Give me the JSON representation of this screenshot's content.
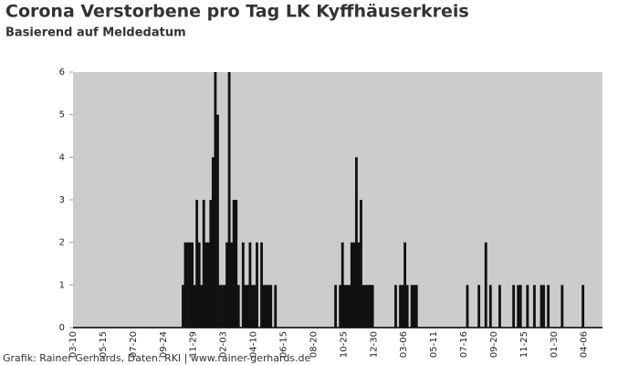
{
  "chart_data": {
    "type": "bar",
    "title": "Corona Verstorbene pro Tag LK Kyffhäuserkreis",
    "subtitle": "Basierend auf Meldedatum",
    "footer": "Grafik: Rainer Gerhards, Daten: RKI | www.rainer-gerhards.de",
    "color": "#111111",
    "background": "#cccccc",
    "grid": false,
    "ylim": [
      0,
      6
    ],
    "yticks": [
      0,
      1,
      2,
      3,
      4,
      5,
      6
    ],
    "categories": [
      "03-10",
      null,
      null,
      null,
      null,
      null,
      null,
      null,
      null,
      null,
      null,
      null,
      null,
      "05-15",
      null,
      null,
      null,
      null,
      null,
      null,
      null,
      null,
      null,
      null,
      null,
      null,
      "07-20",
      null,
      null,
      null,
      null,
      null,
      null,
      null,
      null,
      null,
      null,
      null,
      null,
      "09-24",
      null,
      null,
      null,
      null,
      null,
      null,
      null,
      null,
      null,
      null,
      null,
      null,
      "11-29",
      null,
      null,
      null,
      null,
      null,
      null,
      null,
      null,
      null,
      null,
      null,
      null,
      "02-03",
      null,
      null,
      null,
      null,
      null,
      null,
      null,
      null,
      null,
      null,
      null,
      null,
      "04-10",
      null,
      null,
      null,
      null,
      null,
      null,
      null,
      null,
      null,
      null,
      null,
      null,
      "06-15",
      null,
      null,
      null,
      null,
      null,
      null,
      null,
      null,
      null,
      null,
      null,
      null,
      "08-20",
      null,
      null,
      null,
      null,
      null,
      null,
      null,
      null,
      null,
      null,
      null,
      null,
      "10-25",
      null,
      null,
      null,
      null,
      null,
      null,
      null,
      null,
      null,
      null,
      null,
      null,
      "12-30",
      null,
      null,
      null,
      null,
      null,
      null,
      null,
      null,
      null,
      null,
      null,
      null,
      "03-06",
      null,
      null,
      null,
      null,
      null,
      null,
      null,
      null,
      null,
      null,
      null,
      null,
      "05-11",
      null,
      null,
      null,
      null,
      null,
      null,
      null,
      null,
      null,
      null,
      null,
      null,
      "07-16",
      null,
      null,
      null,
      null,
      null,
      null,
      null,
      null,
      null,
      null,
      null,
      null,
      "09-20",
      null,
      null,
      null,
      null,
      null,
      null,
      null,
      null,
      null,
      null,
      null,
      null,
      "11-25",
      null,
      null,
      null,
      null,
      null,
      null,
      null,
      null,
      null,
      null,
      null,
      null,
      "01-30",
      null,
      null,
      null,
      null,
      null,
      null,
      null,
      null,
      null,
      null,
      null,
      null,
      "04-06",
      null,
      null,
      null,
      null,
      null,
      null,
      null
    ],
    "values": [
      0,
      0,
      0,
      0,
      0,
      0,
      0,
      0,
      0,
      0,
      0,
      0,
      0,
      0,
      0,
      0,
      0,
      0,
      0,
      0,
      0,
      0,
      0,
      0,
      0,
      0,
      0,
      0,
      0,
      0,
      0,
      0,
      0,
      0,
      0,
      0,
      0,
      0,
      0,
      0,
      0,
      0,
      0,
      0,
      0,
      0,
      0,
      1,
      2,
      2,
      2,
      2,
      1,
      3,
      2,
      1,
      3,
      2,
      2,
      3,
      4,
      6,
      5,
      1,
      1,
      1,
      2,
      6,
      2,
      3,
      3,
      1,
      0,
      2,
      1,
      1,
      2,
      1,
      1,
      2,
      0,
      2,
      1,
      1,
      1,
      1,
      0,
      1,
      0,
      0,
      0,
      0,
      0,
      0,
      0,
      0,
      0,
      0,
      0,
      0,
      0,
      0,
      0,
      0,
      0,
      0,
      0,
      0,
      0,
      0,
      0,
      0,
      0,
      1,
      0,
      1,
      2,
      1,
      1,
      1,
      2,
      2,
      4,
      2,
      3,
      1,
      1,
      1,
      1,
      1,
      0,
      0,
      0,
      0,
      0,
      0,
      0,
      0,
      0,
      1,
      0,
      1,
      1,
      2,
      1,
      0,
      1,
      1,
      1,
      0,
      0,
      0,
      0,
      0,
      0,
      0,
      0,
      0,
      0,
      0,
      0,
      0,
      0,
      0,
      0,
      0,
      0,
      0,
      0,
      0,
      1,
      0,
      0,
      0,
      0,
      1,
      0,
      0,
      2,
      0,
      1,
      0,
      0,
      0,
      1,
      0,
      0,
      0,
      0,
      0,
      1,
      0,
      1,
      1,
      0,
      0,
      1,
      0,
      0,
      1,
      0,
      0,
      1,
      1,
      0,
      1,
      0,
      0,
      0,
      0,
      0,
      1,
      0,
      0,
      0,
      0,
      0,
      0,
      0,
      0,
      1,
      0,
      0,
      0,
      0,
      0,
      0,
      0,
      0
    ]
  }
}
